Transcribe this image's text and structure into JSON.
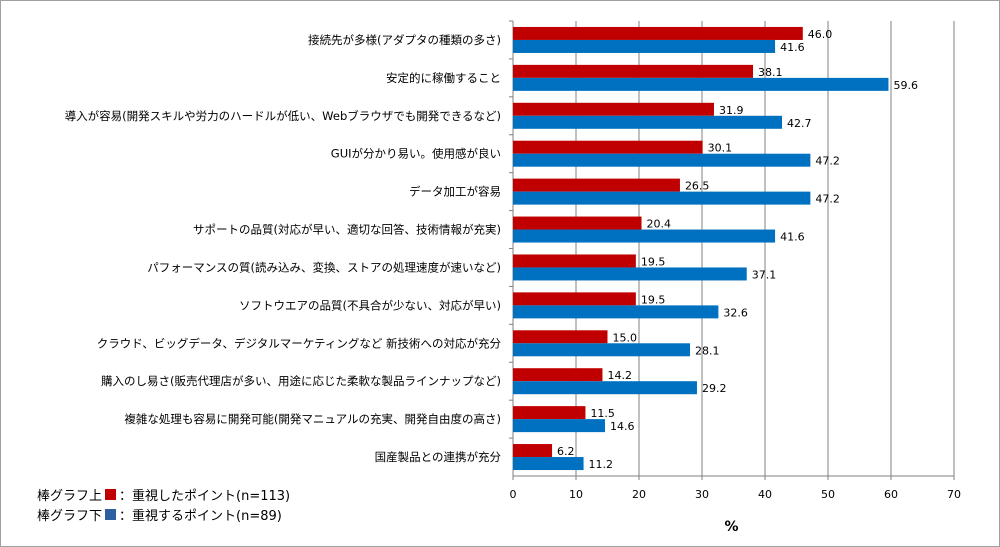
{
  "chart_data": {
    "type": "bar",
    "orientation": "horizontal",
    "categories": [
      "接続先が多様(アダプタの種類の多さ)",
      "安定的に稼働すること",
      "導入が容易(開発スキルや労力のハードルが低い、Webブラウザでも開発できるなど)",
      "GUIが分かり易い。使用感が良い",
      "データ加工が容易",
      "サポートの品質(対応が早い、適切な回答、技術情報が充実)",
      "パフォーマンスの質(読み込み、変換、ストアの処理速度が速いなど)",
      "ソフトウエアの品質(不具合が少ない、対応が早い)",
      "クラウド、ビッグデータ、デジタルマーケティングなど 新技術への対応が充分",
      "購入のし易さ(販売代理店が多い、用途に応じた柔軟な製品ラインナップなど)",
      "複雑な処理も容易に開発可能(開発マニュアルの充実、開発自由度の高さ)",
      "国産製品との連携が充分"
    ],
    "series": [
      {
        "name": "重視したポイント(n=113)",
        "prefix": "棒グラフ上",
        "color": "#c00000",
        "values": [
          46.0,
          38.1,
          31.9,
          30.1,
          26.5,
          20.4,
          19.5,
          19.5,
          15.0,
          14.2,
          11.5,
          6.2
        ]
      },
      {
        "name": "重視するポイント(n=89)",
        "prefix": "棒グラフ下",
        "color": "#0070c0",
        "values": [
          41.6,
          59.6,
          42.7,
          47.2,
          47.2,
          41.6,
          37.1,
          32.6,
          28.1,
          29.2,
          14.6,
          11.2
        ]
      }
    ],
    "xlabel": "%",
    "xlim": [
      0,
      70
    ],
    "xticks": [
      "0",
      "10",
      "20",
      "30",
      "40",
      "50",
      "60",
      "70"
    ],
    "grid": true,
    "legend_position": "bottom-left"
  }
}
